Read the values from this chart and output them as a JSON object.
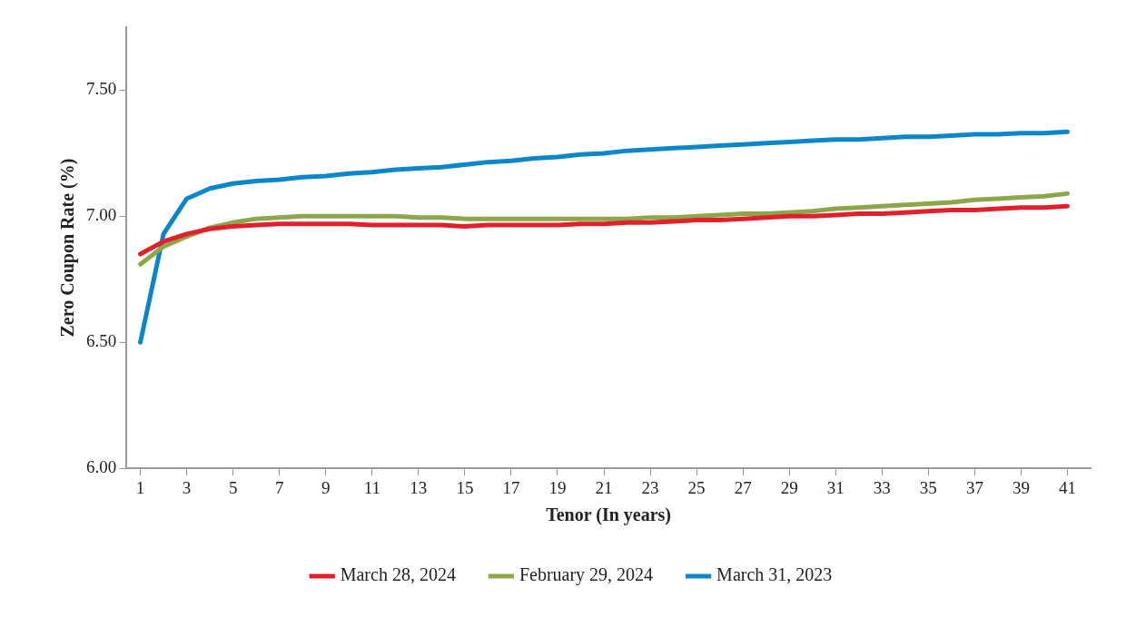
{
  "chart_data": {
    "type": "line",
    "xlabel": "Tenor (In years)",
    "ylabel": "Zero Coupon Rate (%)",
    "x": [
      1,
      2,
      3,
      4,
      5,
      6,
      7,
      8,
      9,
      10,
      11,
      12,
      13,
      14,
      15,
      16,
      17,
      18,
      19,
      20,
      21,
      22,
      23,
      24,
      25,
      26,
      27,
      28,
      29,
      30,
      31,
      32,
      33,
      34,
      35,
      36,
      37,
      38,
      39,
      40,
      41
    ],
    "xlim": [
      0.4,
      42
    ],
    "xticks": [
      1,
      3,
      5,
      7,
      9,
      11,
      13,
      15,
      17,
      19,
      21,
      23,
      25,
      27,
      29,
      31,
      33,
      35,
      37,
      39,
      41
    ],
    "series": [
      {
        "name": "March 28, 2024",
        "color": "#e2202c",
        "values": [
          6.85,
          6.9,
          6.93,
          6.95,
          6.96,
          6.965,
          6.97,
          6.97,
          6.97,
          6.97,
          6.965,
          6.965,
          6.965,
          6.965,
          6.96,
          6.965,
          6.965,
          6.965,
          6.965,
          6.97,
          6.97,
          6.975,
          6.975,
          6.98,
          6.985,
          6.985,
          6.99,
          6.995,
          7.0,
          7.0,
          7.005,
          7.01,
          7.01,
          7.015,
          7.02,
          7.025,
          7.025,
          7.03,
          7.035,
          7.035,
          7.04
        ]
      },
      {
        "name": "February 29, 2024",
        "color": "#8ea64a",
        "values": [
          6.81,
          6.88,
          6.92,
          6.955,
          6.975,
          6.99,
          6.995,
          7.0,
          7.0,
          7.0,
          7.0,
          7.0,
          6.995,
          6.995,
          6.99,
          6.99,
          6.99,
          6.99,
          6.99,
          6.99,
          6.99,
          6.99,
          6.995,
          6.995,
          7.0,
          7.005,
          7.01,
          7.01,
          7.015,
          7.02,
          7.03,
          7.035,
          7.04,
          7.045,
          7.05,
          7.055,
          7.065,
          7.07,
          7.075,
          7.08,
          7.09
        ]
      },
      {
        "name": "March 31, 2023",
        "color": "#0a87c9",
        "values": [
          6.5,
          6.93,
          7.07,
          7.11,
          7.13,
          7.14,
          7.145,
          7.155,
          7.16,
          7.17,
          7.175,
          7.185,
          7.19,
          7.195,
          7.205,
          7.215,
          7.22,
          7.23,
          7.235,
          7.245,
          7.25,
          7.26,
          7.265,
          7.27,
          7.275,
          7.28,
          7.285,
          7.29,
          7.295,
          7.3,
          7.305,
          7.305,
          7.31,
          7.315,
          7.315,
          7.32,
          7.325,
          7.325,
          7.33,
          7.33,
          7.335
        ]
      }
    ],
    "ylim": [
      6.0,
      7.75
    ],
    "yticks": [
      {
        "value": 6.0,
        "label": "6.00"
      },
      {
        "value": 6.5,
        "label": "6.50"
      },
      {
        "value": 7.0,
        "label": "7.00"
      },
      {
        "value": 7.5,
        "label": "7.50"
      }
    ],
    "grid": false,
    "legend": "bottom",
    "marker": "none",
    "line_style": "solid"
  }
}
